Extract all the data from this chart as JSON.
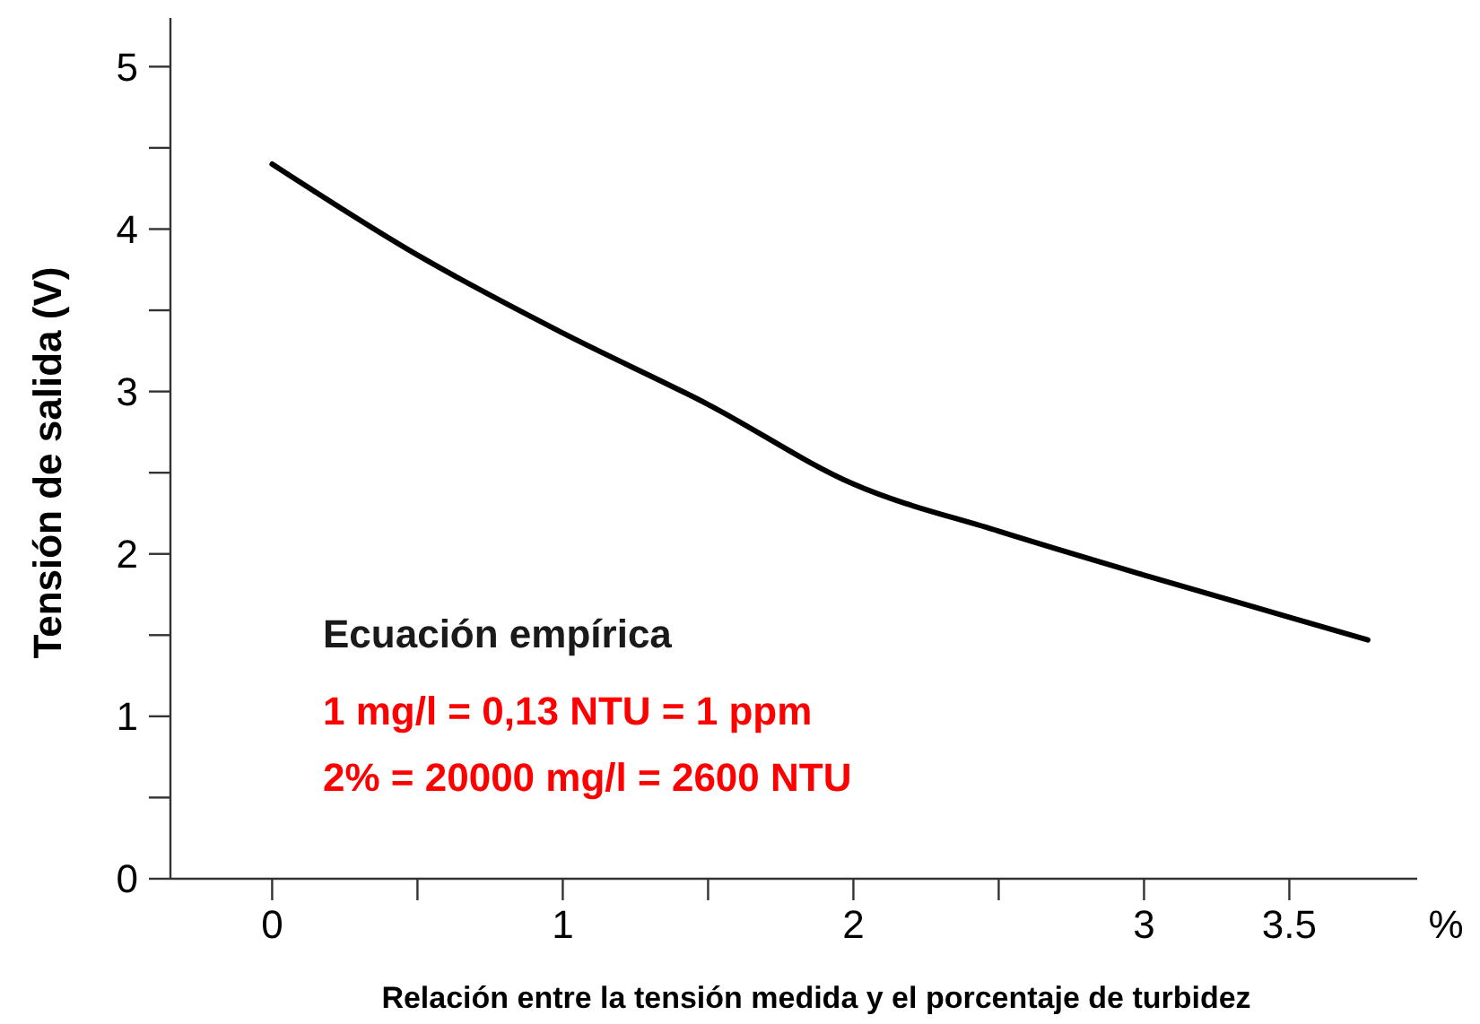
{
  "chart_data": {
    "type": "line",
    "xlabel": "Relación entre la tensión medida y el porcentaje de turbidez",
    "ylabel": "Tensión de salida (V)",
    "x": [
      0,
      0.5,
      1,
      1.5,
      2,
      2.5,
      3,
      3.5,
      3.77
    ],
    "series": [
      {
        "color": "#000000",
        "values": [
          4.4,
          3.84,
          3.36,
          2.92,
          2.43,
          2.14,
          1.87,
          1.61,
          1.47
        ]
      }
    ],
    "xlim": [
      -0.35,
      3.94
    ],
    "ylim": [
      0,
      5.3
    ],
    "xticks": [
      0,
      {
        "value": 0.5,
        "label": null
      },
      1,
      {
        "value": 1.5,
        "label": null
      },
      2,
      {
        "value": 2.5,
        "label": null
      },
      3,
      3.5
    ],
    "yticks": [
      0,
      {
        "value": 0.5,
        "label": null
      },
      1,
      {
        "value": 1.5,
        "label": null
      },
      2,
      {
        "value": 2.5,
        "label": null
      },
      3,
      {
        "value": 3.5,
        "label": null
      },
      4,
      {
        "value": 4.5,
        "label": null
      },
      5
    ],
    "annotations": [
      "%",
      "Ecuación empírica",
      "1 mg/l = 0,13 NTU = 1 ppm",
      "2% = 20000 mg/l = 2600 NTU"
    ],
    "grid": false,
    "marker": "none",
    "line_style": "solid"
  }
}
